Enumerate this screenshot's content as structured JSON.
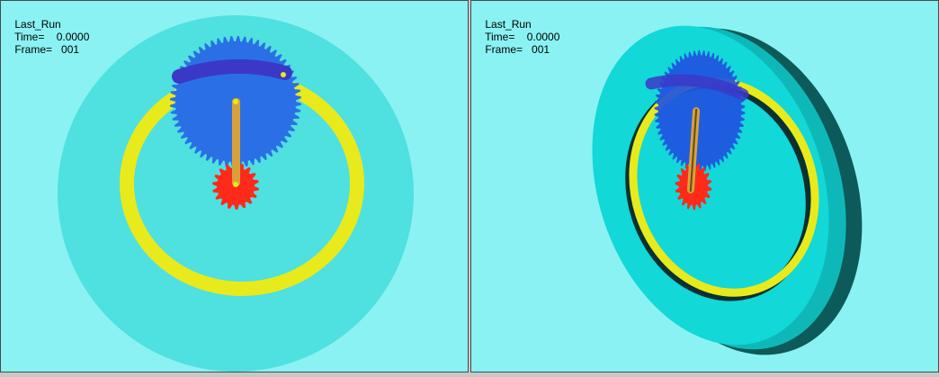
{
  "viewports": [
    {
      "name": "Last_Run",
      "time_label": "Time=",
      "time_value": "0.0000",
      "frame_label": "Frame=",
      "frame_value": "001"
    },
    {
      "name": "Last_Run",
      "time_label": "Time=",
      "time_value": "0.0000",
      "frame_label": "Frame=",
      "frame_value": "001"
    }
  ],
  "colors": {
    "background": "#8af2f2",
    "outer_disk": "#4fe0e0",
    "ring": "#e8ea1c",
    "planet_gear": "#2b6fe6",
    "sun_gear": "#ff2a1a",
    "arm": "#d6a23a",
    "slot": "#3b38c8"
  }
}
